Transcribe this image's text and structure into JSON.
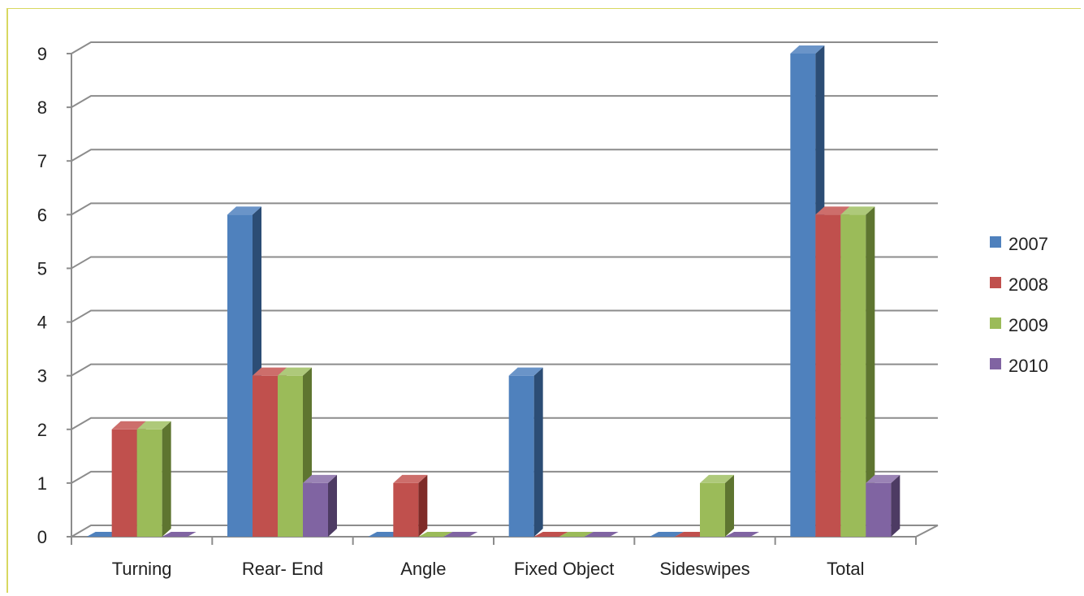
{
  "chart_data": {
    "type": "bar",
    "title": "",
    "xlabel": "",
    "ylabel": "",
    "categories": [
      "Turning",
      "Rear- End",
      "Angle",
      "Fixed Object",
      "Sideswipes",
      "Total"
    ],
    "series": [
      {
        "name": "2007",
        "values": [
          0,
          6,
          0,
          3,
          0,
          9
        ],
        "color": "#4f81bd",
        "side": "#2c4d75",
        "top": "#6a94c8"
      },
      {
        "name": "2008",
        "values": [
          2,
          3,
          1,
          0,
          0,
          6
        ],
        "color": "#c0504d",
        "side": "#7f2b28",
        "top": "#cd6e6b"
      },
      {
        "name": "2009",
        "values": [
          2,
          3,
          0,
          0,
          1,
          6
        ],
        "color": "#9bbb59",
        "side": "#5e7530",
        "top": "#aec97a"
      },
      {
        "name": "2010",
        "values": [
          0,
          1,
          0,
          0,
          0,
          1
        ],
        "color": "#8064a2",
        "side": "#4d3b63",
        "top": "#9a83b5"
      }
    ],
    "ylim": [
      0,
      9
    ],
    "yticks": [
      0,
      1,
      2,
      3,
      4,
      5,
      6,
      7,
      8,
      9
    ],
    "grid": true,
    "legend": "right"
  }
}
